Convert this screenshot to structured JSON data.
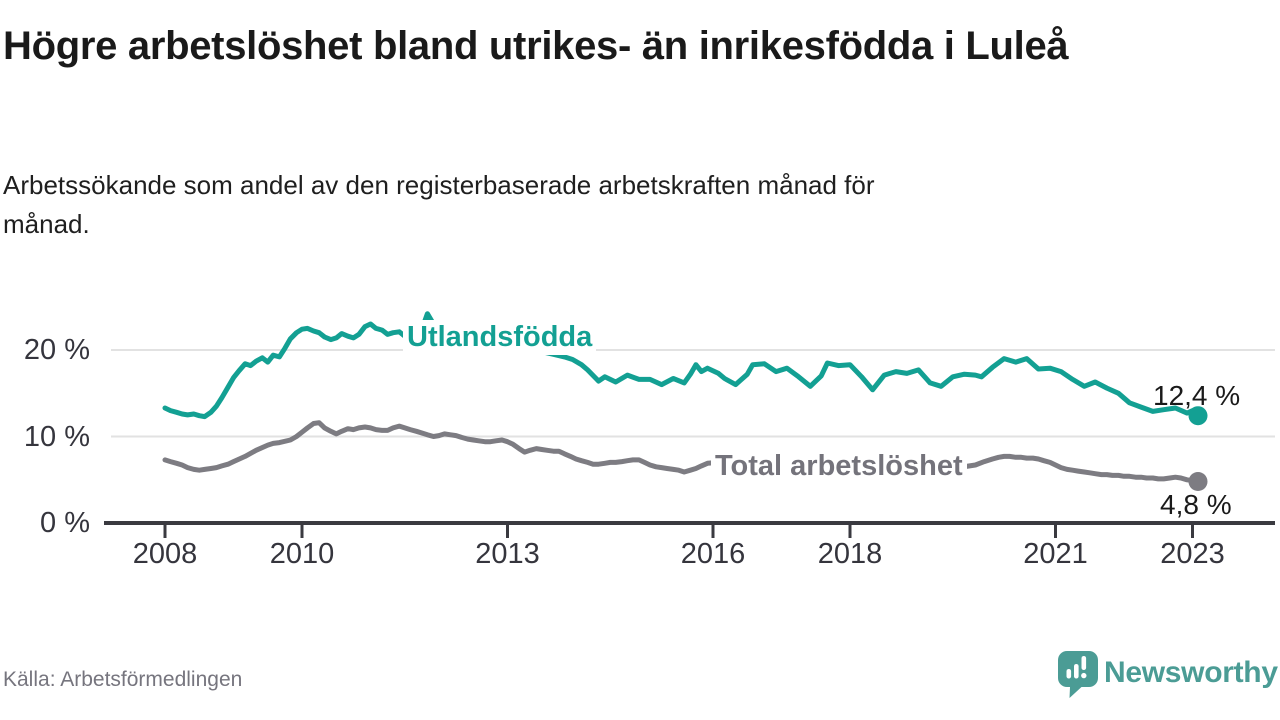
{
  "chart_data": {
    "type": "line",
    "title": "Högre arbetslöshet bland utrikes- än inrikesfödda i Luleå",
    "subtitle": "Arbetssökande som andel av den registerbaserade arbetskraften månad för månad.",
    "source": "Källa: Arbetsförmedlingen",
    "grid": "horizontal",
    "legend": "inline-labels",
    "x_axis": {
      "range": [
        2007.9,
        2023.4
      ],
      "ticks": [
        2008,
        2010,
        2013,
        2016,
        2018,
        2021,
        2023
      ],
      "tick_labels": [
        "2008",
        "2010",
        "2013",
        "2016",
        "2018",
        "2021",
        "2023"
      ]
    },
    "y_axis": {
      "unit": "%",
      "range": [
        0,
        26
      ],
      "ticks": [
        0,
        10,
        20
      ],
      "tick_labels": [
        "0 %",
        "10 %",
        "20 %"
      ],
      "gridlines": [
        10,
        20
      ]
    },
    "series": [
      {
        "name": "Utlandsfödda",
        "color": "#13a093",
        "end_label": "12,4 %",
        "last_value": 12.4,
        "points": [
          [
            2008.0,
            13.3
          ],
          [
            2008.08,
            13.0
          ],
          [
            2008.17,
            12.8
          ],
          [
            2008.25,
            12.6
          ],
          [
            2008.33,
            12.5
          ],
          [
            2008.42,
            12.6
          ],
          [
            2008.5,
            12.4
          ],
          [
            2008.58,
            12.3
          ],
          [
            2008.67,
            12.8
          ],
          [
            2008.75,
            13.5
          ],
          [
            2008.83,
            14.5
          ],
          [
            2008.92,
            15.7
          ],
          [
            2009.0,
            16.8
          ],
          [
            2009.08,
            17.6
          ],
          [
            2009.17,
            18.4
          ],
          [
            2009.25,
            18.2
          ],
          [
            2009.33,
            18.7
          ],
          [
            2009.42,
            19.1
          ],
          [
            2009.5,
            18.6
          ],
          [
            2009.58,
            19.4
          ],
          [
            2009.67,
            19.2
          ],
          [
            2009.75,
            20.2
          ],
          [
            2009.83,
            21.3
          ],
          [
            2009.92,
            22.0
          ],
          [
            2010.0,
            22.4
          ],
          [
            2010.08,
            22.5
          ],
          [
            2010.17,
            22.2
          ],
          [
            2010.25,
            22.0
          ],
          [
            2010.33,
            21.5
          ],
          [
            2010.42,
            21.2
          ],
          [
            2010.5,
            21.4
          ],
          [
            2010.58,
            21.9
          ],
          [
            2010.67,
            21.6
          ],
          [
            2010.75,
            21.4
          ],
          [
            2010.83,
            21.8
          ],
          [
            2010.92,
            22.7
          ],
          [
            2011.0,
            23.0
          ],
          [
            2011.08,
            22.5
          ],
          [
            2011.17,
            22.3
          ],
          [
            2011.25,
            21.8
          ],
          [
            2011.33,
            22.0
          ],
          [
            2011.42,
            22.1
          ],
          [
            2011.5,
            21.6
          ],
          [
            2011.58,
            21.9
          ],
          [
            2011.67,
            22.0
          ],
          [
            2011.75,
            22.4
          ],
          [
            2011.83,
            24.2
          ],
          [
            2011.92,
            23.0
          ],
          [
            2012.0,
            22.4
          ],
          [
            2012.17,
            22.0
          ],
          [
            2012.33,
            22.1
          ],
          [
            2012.5,
            21.8
          ],
          [
            2012.67,
            21.4
          ],
          [
            2012.83,
            21.1
          ],
          [
            2013.0,
            20.8
          ],
          [
            2013.17,
            20.5
          ],
          [
            2013.33,
            20.2
          ],
          [
            2013.5,
            19.8
          ],
          [
            2013.67,
            19.5
          ],
          [
            2013.83,
            19.2
          ],
          [
            2013.95,
            18.9
          ],
          [
            2014.08,
            18.3
          ],
          [
            2014.17,
            17.7
          ],
          [
            2014.33,
            16.4
          ],
          [
            2014.42,
            16.9
          ],
          [
            2014.58,
            16.3
          ],
          [
            2014.75,
            17.1
          ],
          [
            2014.92,
            16.6
          ],
          [
            2015.08,
            16.6
          ],
          [
            2015.25,
            16.0
          ],
          [
            2015.42,
            16.7
          ],
          [
            2015.58,
            16.2
          ],
          [
            2015.67,
            17.2
          ],
          [
            2015.75,
            18.3
          ],
          [
            2015.83,
            17.5
          ],
          [
            2015.92,
            17.9
          ],
          [
            2016.08,
            17.3
          ],
          [
            2016.17,
            16.7
          ],
          [
            2016.33,
            16.0
          ],
          [
            2016.5,
            17.2
          ],
          [
            2016.58,
            18.3
          ],
          [
            2016.75,
            18.4
          ],
          [
            2016.92,
            17.5
          ],
          [
            2017.08,
            17.9
          ],
          [
            2017.25,
            16.9
          ],
          [
            2017.42,
            15.8
          ],
          [
            2017.58,
            17.0
          ],
          [
            2017.67,
            18.5
          ],
          [
            2017.83,
            18.2
          ],
          [
            2018.0,
            18.3
          ],
          [
            2018.17,
            16.9
          ],
          [
            2018.33,
            15.4
          ],
          [
            2018.5,
            17.1
          ],
          [
            2018.67,
            17.5
          ],
          [
            2018.83,
            17.3
          ],
          [
            2019.0,
            17.7
          ],
          [
            2019.17,
            16.2
          ],
          [
            2019.33,
            15.8
          ],
          [
            2019.5,
            16.9
          ],
          [
            2019.67,
            17.2
          ],
          [
            2019.83,
            17.1
          ],
          [
            2019.92,
            16.9
          ],
          [
            2020.08,
            18.0
          ],
          [
            2020.25,
            19.0
          ],
          [
            2020.42,
            18.6
          ],
          [
            2020.58,
            19.0
          ],
          [
            2020.75,
            17.8
          ],
          [
            2020.92,
            17.9
          ],
          [
            2021.08,
            17.5
          ],
          [
            2021.25,
            16.6
          ],
          [
            2021.42,
            15.8
          ],
          [
            2021.58,
            16.3
          ],
          [
            2021.75,
            15.6
          ],
          [
            2021.92,
            15.0
          ],
          [
            2022.08,
            13.9
          ],
          [
            2022.25,
            13.4
          ],
          [
            2022.42,
            12.9
          ],
          [
            2022.58,
            13.1
          ],
          [
            2022.75,
            13.3
          ],
          [
            2022.92,
            12.7
          ],
          [
            2023.0,
            13.0
          ],
          [
            2023.08,
            12.4
          ]
        ]
      },
      {
        "name": "Total arbetslöshet",
        "color": "#7d7c82",
        "end_label": "4,8 %",
        "last_value": 4.8,
        "points": [
          [
            2008.0,
            7.3
          ],
          [
            2008.08,
            7.1
          ],
          [
            2008.17,
            6.9
          ],
          [
            2008.25,
            6.7
          ],
          [
            2008.33,
            6.4
          ],
          [
            2008.42,
            6.2
          ],
          [
            2008.5,
            6.1
          ],
          [
            2008.58,
            6.2
          ],
          [
            2008.67,
            6.3
          ],
          [
            2008.75,
            6.4
          ],
          [
            2008.83,
            6.6
          ],
          [
            2008.92,
            6.8
          ],
          [
            2009.0,
            7.1
          ],
          [
            2009.17,
            7.7
          ],
          [
            2009.33,
            8.4
          ],
          [
            2009.5,
            9.0
          ],
          [
            2009.58,
            9.2
          ],
          [
            2009.67,
            9.3
          ],
          [
            2009.83,
            9.6
          ],
          [
            2009.92,
            10.0
          ],
          [
            2010.0,
            10.5
          ],
          [
            2010.08,
            11.0
          ],
          [
            2010.17,
            11.5
          ],
          [
            2010.25,
            11.6
          ],
          [
            2010.33,
            11.0
          ],
          [
            2010.42,
            10.6
          ],
          [
            2010.5,
            10.3
          ],
          [
            2010.58,
            10.6
          ],
          [
            2010.67,
            10.9
          ],
          [
            2010.75,
            10.8
          ],
          [
            2010.83,
            11.0
          ],
          [
            2010.92,
            11.1
          ],
          [
            2011.0,
            11.0
          ],
          [
            2011.08,
            10.8
          ],
          [
            2011.17,
            10.7
          ],
          [
            2011.25,
            10.7
          ],
          [
            2011.33,
            11.0
          ],
          [
            2011.42,
            11.2
          ],
          [
            2011.5,
            11.0
          ],
          [
            2011.58,
            10.8
          ],
          [
            2011.67,
            10.6
          ],
          [
            2011.75,
            10.4
          ],
          [
            2011.83,
            10.2
          ],
          [
            2011.92,
            10.0
          ],
          [
            2012.0,
            10.1
          ],
          [
            2012.08,
            10.3
          ],
          [
            2012.17,
            10.2
          ],
          [
            2012.25,
            10.1
          ],
          [
            2012.33,
            9.9
          ],
          [
            2012.42,
            9.7
          ],
          [
            2012.5,
            9.6
          ],
          [
            2012.58,
            9.5
          ],
          [
            2012.67,
            9.4
          ],
          [
            2012.75,
            9.4
          ],
          [
            2012.83,
            9.5
          ],
          [
            2012.92,
            9.6
          ],
          [
            2013.0,
            9.4
          ],
          [
            2013.08,
            9.1
          ],
          [
            2013.17,
            8.6
          ],
          [
            2013.25,
            8.2
          ],
          [
            2013.33,
            8.4
          ],
          [
            2013.42,
            8.6
          ],
          [
            2013.5,
            8.5
          ],
          [
            2013.58,
            8.4
          ],
          [
            2013.67,
            8.3
          ],
          [
            2013.75,
            8.3
          ],
          [
            2013.83,
            8.0
          ],
          [
            2013.92,
            7.7
          ],
          [
            2014.0,
            7.4
          ],
          [
            2014.08,
            7.2
          ],
          [
            2014.17,
            7.0
          ],
          [
            2014.25,
            6.8
          ],
          [
            2014.33,
            6.8
          ],
          [
            2014.42,
            6.9
          ],
          [
            2014.5,
            7.0
          ],
          [
            2014.58,
            7.0
          ],
          [
            2014.67,
            7.1
          ],
          [
            2014.75,
            7.2
          ],
          [
            2014.83,
            7.3
          ],
          [
            2014.92,
            7.3
          ],
          [
            2015.0,
            7.0
          ],
          [
            2015.08,
            6.7
          ],
          [
            2015.17,
            6.5
          ],
          [
            2015.25,
            6.4
          ],
          [
            2015.33,
            6.3
          ],
          [
            2015.42,
            6.2
          ],
          [
            2015.5,
            6.1
          ],
          [
            2015.58,
            5.9
          ],
          [
            2015.67,
            6.1
          ],
          [
            2015.75,
            6.3
          ],
          [
            2015.83,
            6.6
          ],
          [
            2015.92,
            6.9
          ],
          [
            2016.08,
            7.0
          ],
          [
            2016.33,
            6.9
          ],
          [
            2016.58,
            6.8
          ],
          [
            2016.83,
            6.8
          ],
          [
            2017.08,
            6.9
          ],
          [
            2017.33,
            6.8
          ],
          [
            2017.58,
            6.7
          ],
          [
            2017.83,
            6.6
          ],
          [
            2018.08,
            6.6
          ],
          [
            2018.33,
            6.5
          ],
          [
            2018.58,
            6.4
          ],
          [
            2018.83,
            6.3
          ],
          [
            2019.08,
            6.3
          ],
          [
            2019.33,
            6.3
          ],
          [
            2019.58,
            6.4
          ],
          [
            2019.83,
            6.7
          ],
          [
            2019.96,
            7.1
          ],
          [
            2020.08,
            7.4
          ],
          [
            2020.17,
            7.6
          ],
          [
            2020.25,
            7.7
          ],
          [
            2020.33,
            7.7
          ],
          [
            2020.42,
            7.6
          ],
          [
            2020.5,
            7.6
          ],
          [
            2020.58,
            7.5
          ],
          [
            2020.67,
            7.5
          ],
          [
            2020.75,
            7.4
          ],
          [
            2020.83,
            7.2
          ],
          [
            2020.92,
            7.0
          ],
          [
            2021.0,
            6.7
          ],
          [
            2021.08,
            6.4
          ],
          [
            2021.17,
            6.2
          ],
          [
            2021.25,
            6.1
          ],
          [
            2021.33,
            6.0
          ],
          [
            2021.42,
            5.9
          ],
          [
            2021.5,
            5.8
          ],
          [
            2021.58,
            5.7
          ],
          [
            2021.67,
            5.6
          ],
          [
            2021.75,
            5.6
          ],
          [
            2021.83,
            5.5
          ],
          [
            2021.92,
            5.5
          ],
          [
            2022.0,
            5.4
          ],
          [
            2022.08,
            5.4
          ],
          [
            2022.17,
            5.3
          ],
          [
            2022.25,
            5.3
          ],
          [
            2022.33,
            5.2
          ],
          [
            2022.42,
            5.2
          ],
          [
            2022.5,
            5.1
          ],
          [
            2022.58,
            5.1
          ],
          [
            2022.67,
            5.2
          ],
          [
            2022.75,
            5.3
          ],
          [
            2022.83,
            5.2
          ],
          [
            2022.92,
            5.0
          ],
          [
            2023.0,
            4.9
          ],
          [
            2023.08,
            4.8
          ]
        ]
      }
    ],
    "style": {
      "axis_color": "#3a3a40",
      "gridline_color": "#e2e2e2",
      "tick_label_color": "#35353d",
      "line_width": 5
    }
  },
  "branding": {
    "logo_text": "Newsworthy",
    "logo_color": "#4b9c95"
  }
}
